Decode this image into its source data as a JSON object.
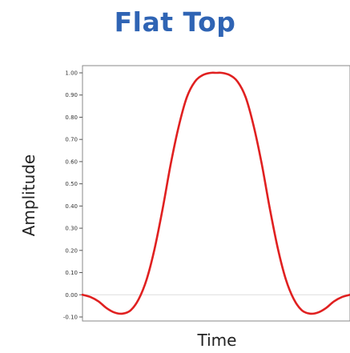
{
  "chart_data": {
    "type": "line",
    "title": "Flat Top",
    "xlabel": "Time",
    "ylabel": "Amplitude",
    "ylim": [
      -0.1,
      1.0
    ],
    "xlim": [
      0,
      1
    ],
    "grid": false,
    "yticks": [
      1.0,
      0.9,
      0.8,
      0.7,
      0.6,
      0.5,
      0.4,
      0.3,
      0.2,
      0.1,
      0.0,
      -0.1
    ],
    "ytick_labels": [
      "1.00",
      "0.90",
      "0.80",
      "0.70",
      "0.60",
      "0.50",
      "0.40",
      "0.30",
      "0.20",
      "0.10",
      "0.00",
      "-0.10"
    ],
    "series": [
      {
        "color": "#e02020",
        "x": [
          0.0,
          0.03,
          0.06,
          0.09,
          0.12,
          0.15,
          0.18,
          0.21,
          0.24,
          0.27,
          0.3,
          0.33,
          0.36,
          0.39,
          0.42,
          0.45,
          0.48,
          0.5,
          0.52,
          0.55,
          0.58,
          0.61,
          0.64,
          0.67,
          0.7,
          0.73,
          0.76,
          0.79,
          0.82,
          0.85,
          0.88,
          0.91,
          0.94,
          0.97,
          1.0
        ],
        "values": [
          0.0,
          -0.01,
          -0.03,
          -0.06,
          -0.08,
          -0.085,
          -0.07,
          -0.02,
          0.07,
          0.21,
          0.39,
          0.59,
          0.76,
          0.89,
          0.96,
          0.99,
          1.0,
          1.0,
          1.0,
          0.99,
          0.96,
          0.89,
          0.76,
          0.59,
          0.39,
          0.21,
          0.07,
          -0.02,
          -0.07,
          -0.085,
          -0.08,
          -0.06,
          -0.03,
          -0.01,
          0.0
        ]
      }
    ]
  }
}
